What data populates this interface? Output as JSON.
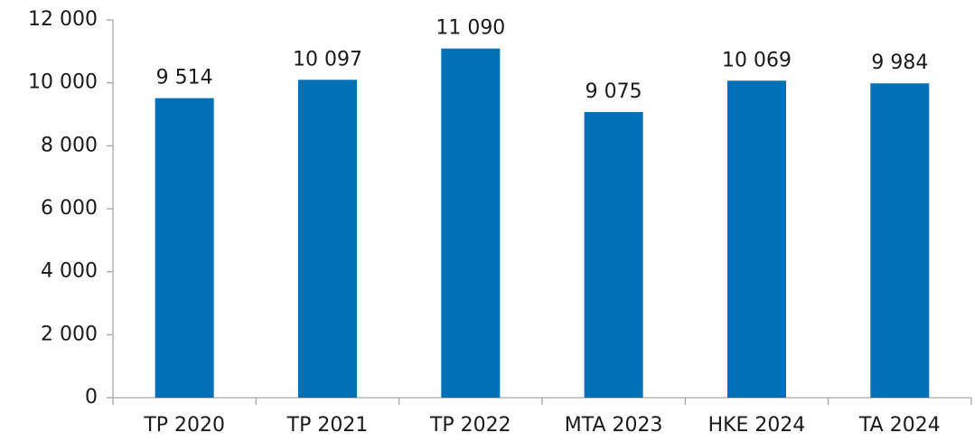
{
  "chart_data": {
    "type": "bar",
    "categories": [
      "TP 2020",
      "TP 2021",
      "TP 2022",
      "MTA 2023",
      "HKE 2024",
      "TA 2024"
    ],
    "values": [
      9514,
      10097,
      11090,
      9075,
      10069,
      9984
    ],
    "value_labels": [
      "9 514",
      "10 097",
      "11 090",
      "9 075",
      "10 069",
      "9 984"
    ],
    "color": "#0070b8",
    "ylim": [
      0,
      12000
    ],
    "yticks": [
      {
        "value": 0,
        "label": "0"
      },
      {
        "value": 2000,
        "label": "2 000"
      },
      {
        "value": 4000,
        "label": "4 000"
      },
      {
        "value": 6000,
        "label": "6 000"
      },
      {
        "value": 8000,
        "label": "8 000"
      },
      {
        "value": 10000,
        "label": "10 000"
      },
      {
        "value": 12000,
        "label": "12 000"
      }
    ],
    "grid": false
  }
}
